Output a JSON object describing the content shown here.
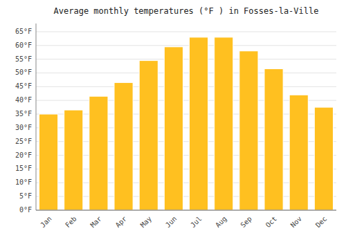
{
  "chart_data": {
    "type": "bar",
    "title": "Average monthly temperatures (°F ) in Fosses-la-Ville",
    "categories": [
      "Jan",
      "Feb",
      "Mar",
      "Apr",
      "May",
      "Jun",
      "Jul",
      "Aug",
      "Sep",
      "Oct",
      "Nov",
      "Dec"
    ],
    "values": [
      35,
      36.5,
      41.5,
      46.5,
      54.5,
      59.5,
      63,
      63,
      58,
      51.5,
      42,
      37.5
    ],
    "color": "#FFC020",
    "ylim": [
      0,
      68
    ],
    "yticks": [
      {
        "value": 0,
        "label": "0°F"
      },
      {
        "value": 5,
        "label": "5°F"
      },
      {
        "value": 10,
        "label": "10°F"
      },
      {
        "value": 15,
        "label": "15°F"
      },
      {
        "value": 20,
        "label": "20°F"
      },
      {
        "value": 25,
        "label": "25°F"
      },
      {
        "value": 30,
        "label": "30°F"
      },
      {
        "value": 35,
        "label": "35°F"
      },
      {
        "value": 40,
        "label": "40°F"
      },
      {
        "value": 45,
        "label": "45°F"
      },
      {
        "value": 50,
        "label": "50°F"
      },
      {
        "value": 55,
        "label": "55°F"
      },
      {
        "value": 60,
        "label": "60°F"
      },
      {
        "value": 65,
        "label": "65°F"
      }
    ],
    "grid": true
  }
}
